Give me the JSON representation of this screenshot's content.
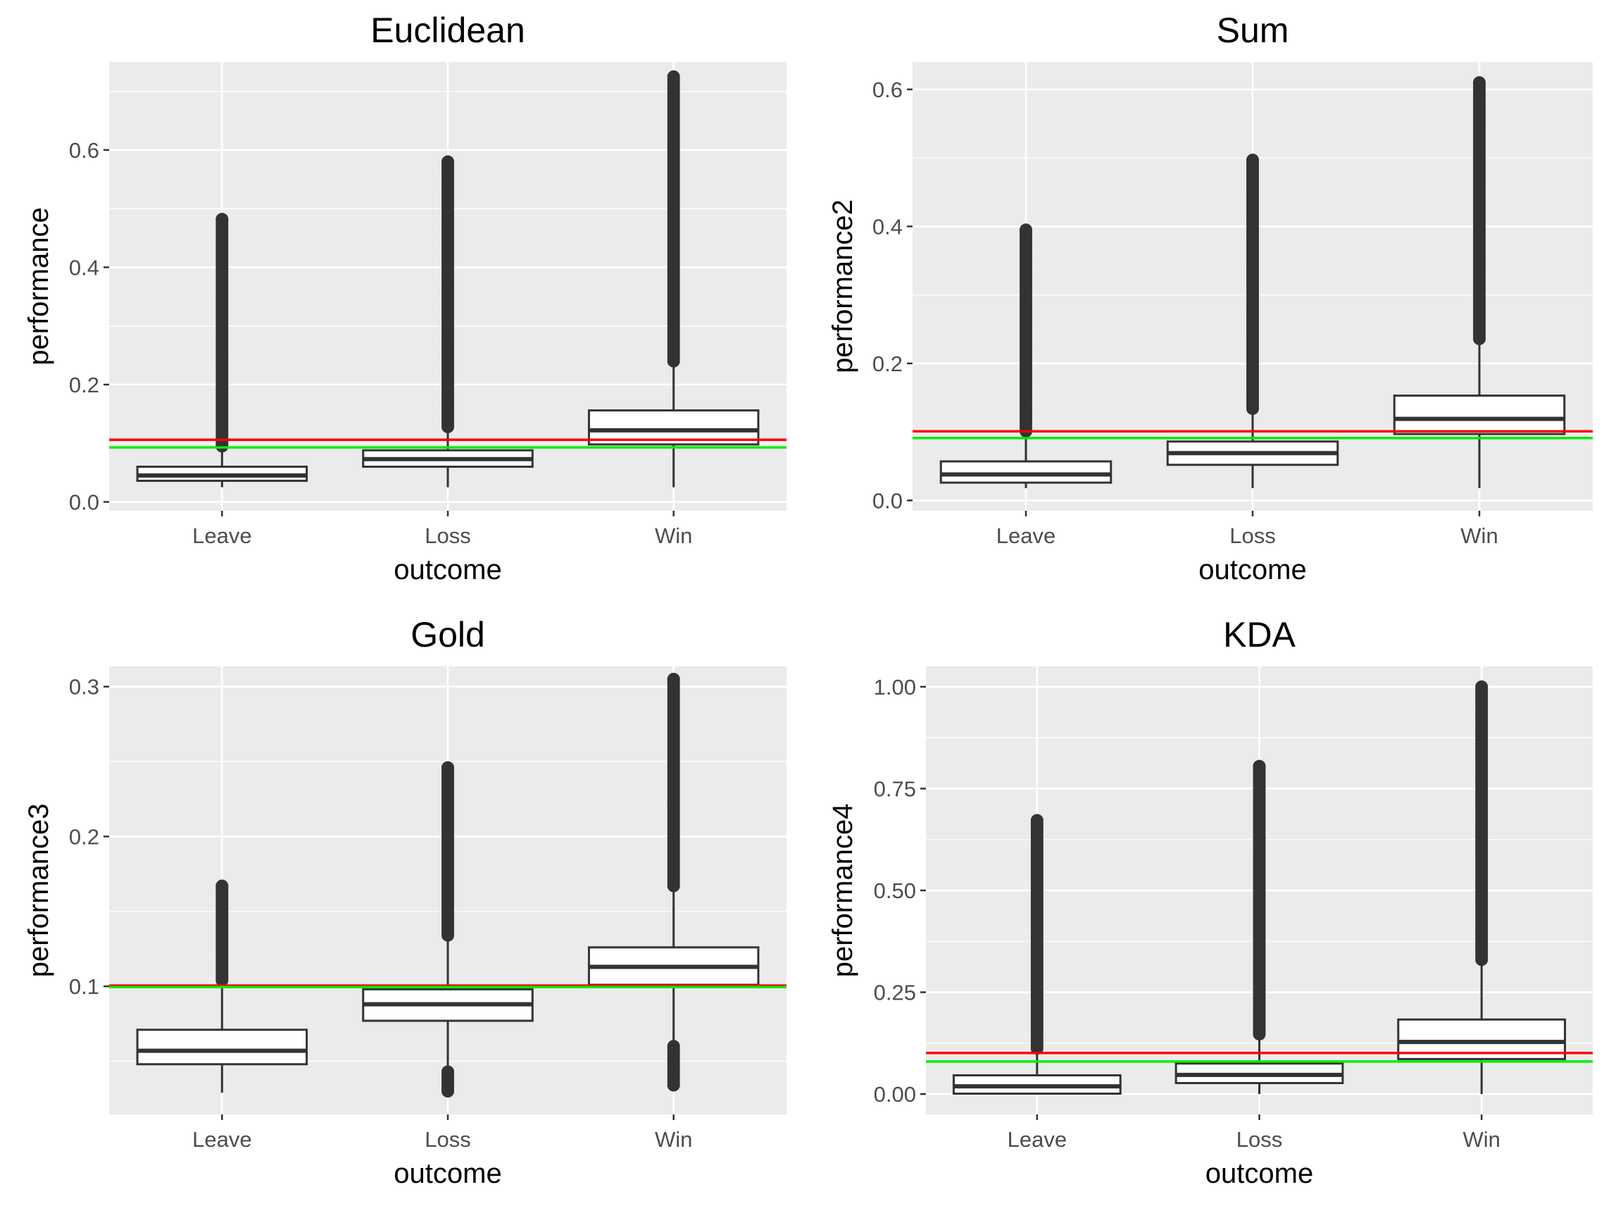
{
  "chart_data": [
    {
      "type": "box",
      "title": "Euclidean",
      "xlabel": "outcome",
      "ylabel": "performance",
      "categories": [
        "Leave",
        "Loss",
        "Win"
      ],
      "ylim": [
        -0.015,
        0.75
      ],
      "yticks": [
        0.0,
        0.2,
        0.4,
        0.6
      ],
      "ytick_labels": [
        "0.0",
        "0.2",
        "0.4",
        "0.6"
      ],
      "boxes": [
        {
          "category": "Leave",
          "whisker_low": 0.025,
          "q1": 0.036,
          "median": 0.045,
          "q3": 0.06,
          "whisker_high": 0.095,
          "outlier_min": 0.095,
          "outlier_max": 0.482
        },
        {
          "category": "Loss",
          "whisker_low": 0.025,
          "q1": 0.06,
          "median": 0.073,
          "q3": 0.088,
          "whisker_high": 0.128,
          "outlier_min": 0.128,
          "outlier_max": 0.58
        },
        {
          "category": "Win",
          "whisker_low": 0.025,
          "q1": 0.098,
          "median": 0.122,
          "q3": 0.156,
          "whisker_high": 0.24,
          "outlier_min": 0.24,
          "outlier_max": 0.725
        }
      ],
      "hlines": [
        {
          "color": "#ff0000",
          "value": 0.106
        },
        {
          "color": "#00ee00",
          "value": 0.093
        }
      ]
    },
    {
      "type": "box",
      "title": "Sum",
      "xlabel": "outcome",
      "ylabel": "performance2",
      "categories": [
        "Leave",
        "Loss",
        "Win"
      ],
      "ylim": [
        -0.015,
        0.64
      ],
      "yticks": [
        0.0,
        0.2,
        0.4,
        0.6
      ],
      "ytick_labels": [
        "0.0",
        "0.2",
        "0.4",
        "0.6"
      ],
      "boxes": [
        {
          "category": "Leave",
          "whisker_low": 0.018,
          "q1": 0.026,
          "median": 0.038,
          "q3": 0.057,
          "whisker_high": 0.101,
          "outlier_min": 0.101,
          "outlier_max": 0.395
        },
        {
          "category": "Loss",
          "whisker_low": 0.018,
          "q1": 0.052,
          "median": 0.069,
          "q3": 0.086,
          "whisker_high": 0.134,
          "outlier_min": 0.134,
          "outlier_max": 0.497
        },
        {
          "category": "Win",
          "whisker_low": 0.018,
          "q1": 0.097,
          "median": 0.119,
          "q3": 0.153,
          "whisker_high": 0.236,
          "outlier_min": 0.236,
          "outlier_max": 0.61
        }
      ],
      "hlines": [
        {
          "color": "#ff0000",
          "value": 0.101
        },
        {
          "color": "#00ee00",
          "value": 0.091
        }
      ]
    },
    {
      "type": "box",
      "title": "Gold",
      "xlabel": "outcome",
      "ylabel": "performance3",
      "categories": [
        "Leave",
        "Loss",
        "Win"
      ],
      "ylim": [
        0.0145,
        0.3135
      ],
      "yticks": [
        0.1,
        0.2,
        0.3
      ],
      "ytick_labels": [
        "0.1",
        "0.2",
        "0.3"
      ],
      "boxes": [
        {
          "category": "Leave",
          "whisker_low": 0.029,
          "q1": 0.048,
          "median": 0.057,
          "q3": 0.071,
          "whisker_high": 0.104,
          "outlier_min": 0.104,
          "outlier_max": 0.167
        },
        {
          "category": "Loss",
          "whisker_low": 0.043,
          "q1": 0.077,
          "median": 0.088,
          "q3": 0.098,
          "whisker_high": 0.134,
          "outlier_min": 0.134,
          "outlier_max": 0.246,
          "low_outlier_min": 0.03,
          "low_outlier_max": 0.043
        },
        {
          "category": "Win",
          "whisker_low": 0.06,
          "q1": 0.101,
          "median": 0.113,
          "q3": 0.126,
          "whisker_high": 0.167,
          "outlier_min": 0.167,
          "outlier_max": 0.305,
          "low_outlier_min": 0.034,
          "low_outlier_max": 0.06
        }
      ],
      "hlines": [
        {
          "color": "#ff0000",
          "value": 0.1005
        },
        {
          "color": "#00ee00",
          "value": 0.0995
        }
      ]
    },
    {
      "type": "box",
      "title": "KDA",
      "xlabel": "outcome",
      "ylabel": "performance4",
      "categories": [
        "Leave",
        "Loss",
        "Win"
      ],
      "ylim": [
        -0.05,
        1.05
      ],
      "yticks": [
        0.0,
        0.25,
        0.5,
        0.75,
        1.0
      ],
      "ytick_labels": [
        "0.00",
        "0.25",
        "0.50",
        "0.75",
        "1.00"
      ],
      "boxes": [
        {
          "category": "Leave",
          "whisker_low": 0.0,
          "q1": 0.001,
          "median": 0.019,
          "q3": 0.046,
          "whisker_high": 0.112,
          "outlier_min": 0.112,
          "outlier_max": 0.672
        },
        {
          "category": "Loss",
          "whisker_low": 0.0,
          "q1": 0.027,
          "median": 0.047,
          "q3": 0.075,
          "whisker_high": 0.147,
          "outlier_min": 0.147,
          "outlier_max": 0.805
        },
        {
          "category": "Win",
          "whisker_low": 0.0,
          "q1": 0.086,
          "median": 0.128,
          "q3": 0.183,
          "whisker_high": 0.33,
          "outlier_min": 0.33,
          "outlier_max": 1.0
        }
      ],
      "hlines": [
        {
          "color": "#ff0000",
          "value": 0.101
        },
        {
          "color": "#00ee00",
          "value": 0.08
        }
      ]
    }
  ]
}
